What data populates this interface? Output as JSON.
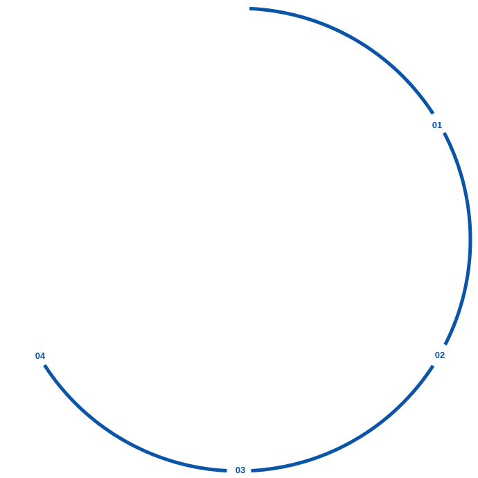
{
  "diagram": {
    "accent_color": "#0b54a6",
    "steps": [
      {
        "label": "01"
      },
      {
        "label": "02"
      },
      {
        "label": "03"
      },
      {
        "label": "04"
      }
    ]
  }
}
